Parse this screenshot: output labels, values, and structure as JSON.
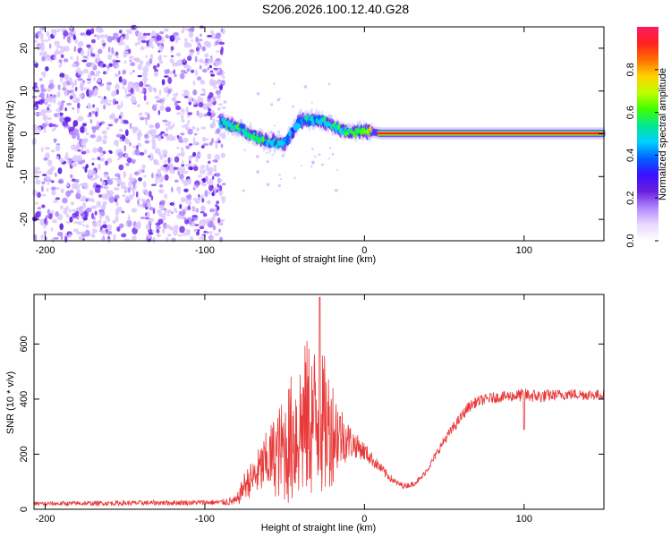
{
  "title": "S206.2026.100.12.40.G28",
  "colors": {
    "snr_line": "#e83a3a",
    "axis": "#000000",
    "colormap": [
      "#ffffff",
      "#e9d8ff",
      "#b088ff",
      "#6a1fe0",
      "#3a10ff",
      "#0060ff",
      "#00d0ff",
      "#00e890",
      "#40ff00",
      "#c0ff00",
      "#ffd000",
      "#ff7000",
      "#ff2020",
      "#ff1a60"
    ]
  },
  "chart_data": [
    {
      "type": "heatmap",
      "title": "S206.2026.100.12.40.G28",
      "xlabel": "Height of straight line (km)",
      "ylabel": "Frequency (Hz)",
      "xlim": [
        -207,
        150
      ],
      "ylim": [
        -25,
        25
      ],
      "xticks": [
        -200,
        -100,
        0,
        100
      ],
      "yticks": [
        -20,
        -10,
        0,
        10,
        20
      ],
      "colorbar": {
        "label": "Normalized spectral amplitude",
        "range": [
          0,
          1
        ],
        "ticks": [
          "0.0",
          "0.2",
          "0.4",
          "0.6",
          "0.8"
        ],
        "tick_values": [
          0.0,
          0.2,
          0.4,
          0.6,
          0.8
        ]
      },
      "noise_region_x": [
        -207,
        -88
      ],
      "ridge": [
        {
          "x": -90,
          "f": 2.8,
          "a": 0.45
        },
        {
          "x": -80,
          "f": 1.5,
          "a": 0.5
        },
        {
          "x": -70,
          "f": -0.5,
          "a": 0.5
        },
        {
          "x": -60,
          "f": -1.8,
          "a": 0.5
        },
        {
          "x": -50,
          "f": -2.5,
          "a": 0.45
        },
        {
          "x": -45,
          "f": 0.5,
          "a": 0.4
        },
        {
          "x": -40,
          "f": 3.2,
          "a": 0.45
        },
        {
          "x": -30,
          "f": 3.5,
          "a": 0.45
        },
        {
          "x": -20,
          "f": 2.0,
          "a": 0.5
        },
        {
          "x": -10,
          "f": 0.2,
          "a": 0.55
        },
        {
          "x": 0,
          "f": 0.8,
          "a": 0.6
        },
        {
          "x": 10,
          "f": 0.1,
          "a": 0.85
        },
        {
          "x": 40,
          "f": 0.1,
          "a": 0.9
        },
        {
          "x": 80,
          "f": 0.1,
          "a": 0.9
        },
        {
          "x": 120,
          "f": 0.1,
          "a": 0.9
        },
        {
          "x": 150,
          "f": 0.1,
          "a": 0.9
        }
      ]
    },
    {
      "type": "line",
      "xlabel": "Height of straight line (km)",
      "ylabel": "SNR (10 * v/v)",
      "xlim": [
        -207,
        150
      ],
      "ylim": [
        0,
        780
      ],
      "xticks": [
        -200,
        -100,
        0,
        100
      ],
      "yticks": [
        0,
        200,
        400,
        600
      ],
      "envelope": {
        "x": [
          -207,
          -90,
          -80,
          -75,
          -70,
          -60,
          -50,
          -45,
          -40,
          -35,
          -30,
          -25,
          -20,
          -15,
          -10,
          -5,
          0,
          5,
          10,
          15,
          20,
          25,
          30,
          35,
          40,
          45,
          50,
          55,
          60,
          65,
          70,
          80,
          90,
          100,
          110,
          120,
          130,
          140,
          150
        ],
        "mean": [
          20,
          25,
          30,
          90,
          110,
          180,
          220,
          260,
          300,
          330,
          320,
          300,
          290,
          270,
          250,
          230,
          210,
          180,
          150,
          120,
          95,
          85,
          90,
          110,
          150,
          200,
          250,
          290,
          330,
          370,
          390,
          405,
          410,
          415,
          410,
          415,
          418,
          416,
          415
        ],
        "amplitude": [
          8,
          10,
          20,
          50,
          70,
          120,
          200,
          250,
          280,
          300,
          280,
          260,
          200,
          120,
          70,
          45,
          35,
          25,
          20,
          15,
          12,
          10,
          10,
          10,
          12,
          15,
          18,
          20,
          20,
          20,
          20,
          20,
          20,
          25,
          25,
          20,
          20,
          20,
          20
        ]
      },
      "peak": {
        "x": -28,
        "y": 770
      },
      "dip": {
        "x": 100,
        "y": 290
      }
    }
  ]
}
